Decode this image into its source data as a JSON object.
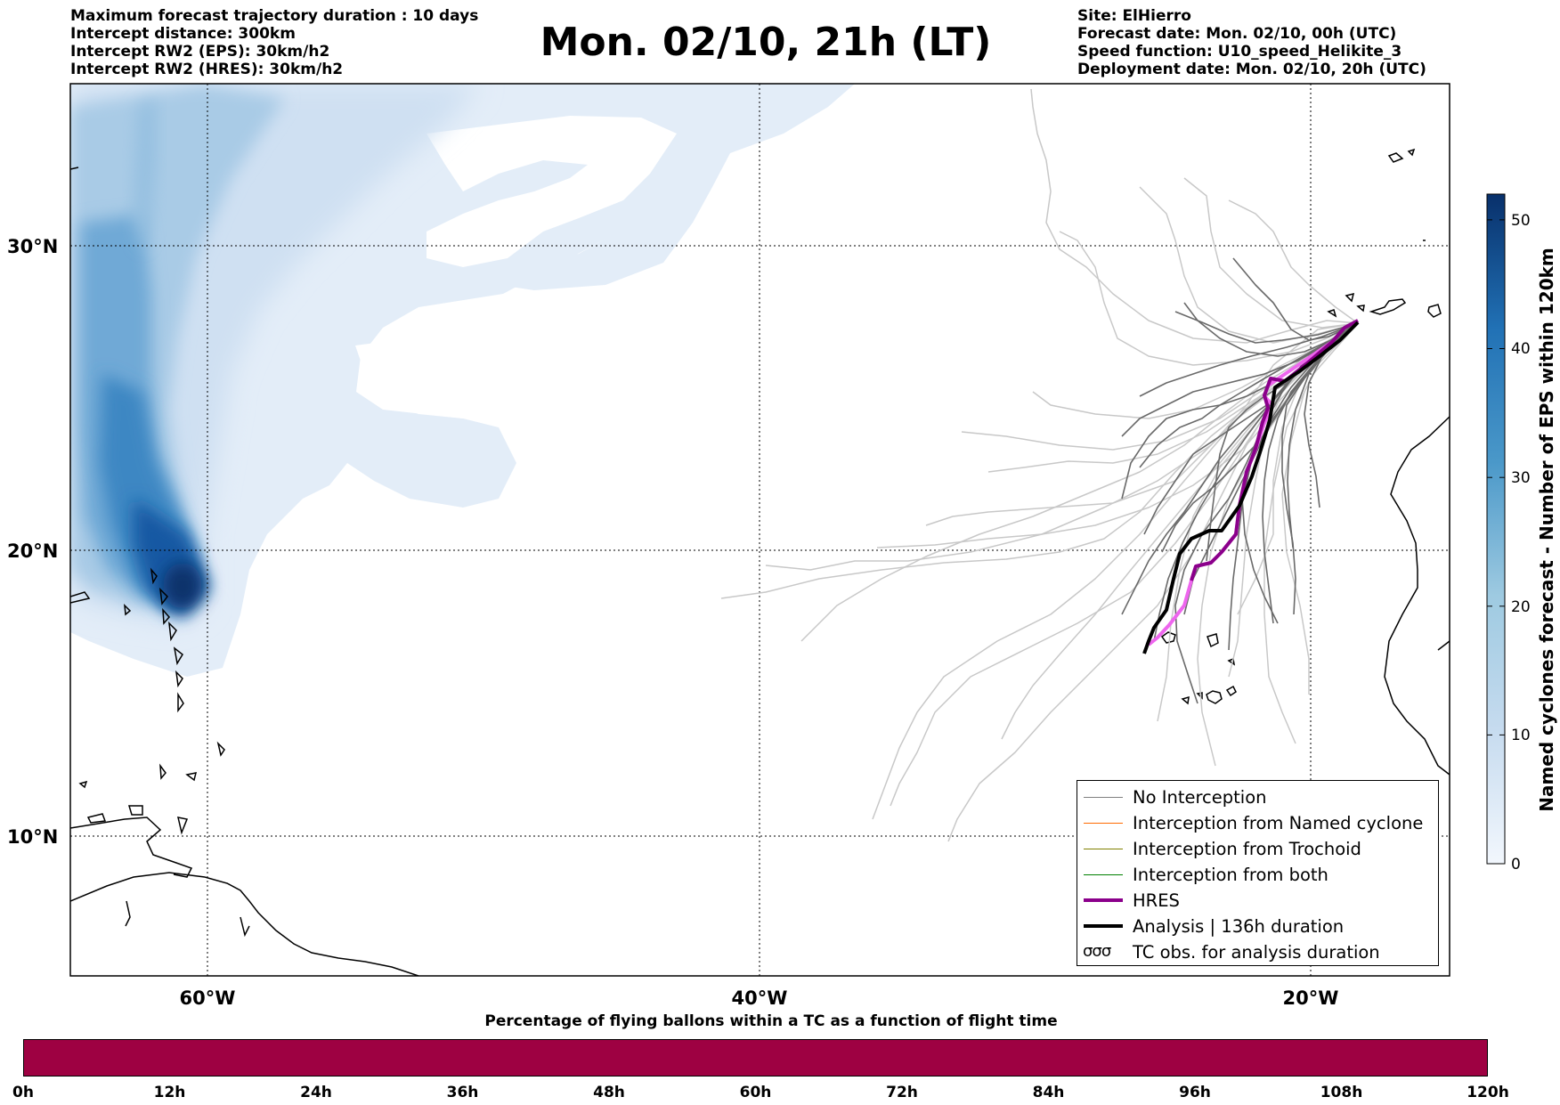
{
  "header": {
    "left_lines": [
      "Maximum forecast trajectory duration : 10 days",
      "Intercept distance: 300km",
      "Intercept RW2 (EPS):  30km/h2",
      "Intercept RW2 (HRES): 30km/h2"
    ],
    "title": "Mon. 02/10, 21h (LT)",
    "right_lines": [
      "Site: ElHierro",
      "Forecast date: Mon. 02/10, 00h (UTC)",
      "Speed function: U10_speed_Helikite_3",
      "Deployment date: Mon. 02/10, 20h (UTC)"
    ]
  },
  "map": {
    "lat_labels": [
      "30°N",
      "20°N",
      "10°N"
    ],
    "lon_labels": [
      "60°W",
      "40°W",
      "20°W"
    ],
    "extent": {
      "lon_min": -65,
      "lon_max": -15,
      "lat_min": 5.4,
      "lat_max": 34.8
    },
    "grid": true
  },
  "colorbar": {
    "label": "Named cyclones forecast - Number of EPS within 120km",
    "ticks": [
      "0",
      "10",
      "20",
      "30",
      "40",
      "50"
    ],
    "min": 0,
    "max": 52,
    "colormap": "Blues",
    "colors": [
      "#e8f0fa",
      "#c6dbef",
      "#9ecae1",
      "#6baed6",
      "#3182bd",
      "#08519c",
      "#08306b"
    ]
  },
  "legend": {
    "items": [
      {
        "label": "No Interception",
        "color": "#808080",
        "style": "line"
      },
      {
        "label": "Interception from Named cyclone",
        "color": "#ff6a00",
        "style": "line"
      },
      {
        "label": "Interception from Trochoid",
        "color": "#808000",
        "style": "line"
      },
      {
        "label": "Interception from both",
        "color": "#008000",
        "style": "line"
      },
      {
        "label": "HRES",
        "color": "#8b008b",
        "style": "thick"
      },
      {
        "label": "Analysis | 136h duration",
        "color": "#000000",
        "style": "thick"
      },
      {
        "label": "TC obs. for analysis duration",
        "color": "#000000",
        "style": "symbol",
        "symbol": "σσσ"
      }
    ]
  },
  "bottom": {
    "title": "Percentage of flying ballons within a TC as a function of flight time",
    "ticks": [
      "0h",
      "12h",
      "24h",
      "36h",
      "48h",
      "60h",
      "72h",
      "84h",
      "96h",
      "108h",
      "120h"
    ],
    "bar_color": "#9e0142"
  }
}
